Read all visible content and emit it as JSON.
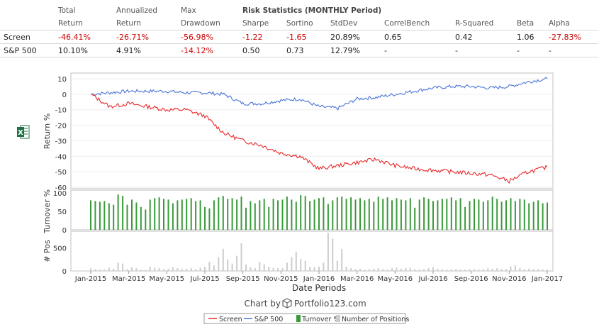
{
  "stats_table": {
    "group_header": "Risk Statistics (MONTHLY Period)",
    "headers_top": [
      "Total",
      "Annualized",
      "Max"
    ],
    "headers": [
      "Return",
      "Return",
      "Drawdown",
      "Sharpe",
      "Sortino",
      "StdDev",
      "CorrelBench",
      "R-Squared",
      "Beta",
      "Alpha"
    ],
    "rows": [
      {
        "name": "Screen",
        "values": [
          "-46.41%",
          "-26.71%",
          "-56.98%",
          "-1.22",
          "-1.65",
          "20.89%",
          "0.65",
          "0.42",
          "1.06",
          "-27.83%"
        ]
      },
      {
        "name": "S&P 500",
        "values": [
          "10.10%",
          "4.91%",
          "-14.12%",
          "0.50",
          "0.73",
          "12.79%",
          "-",
          "-",
          "-",
          "-"
        ]
      }
    ]
  },
  "chart_data": [
    {
      "type": "line",
      "ylabel": "Return %",
      "ylim": [
        -60,
        10
      ],
      "yticks": [
        "10",
        "0",
        "-10",
        "-20",
        "-30",
        "-40",
        "-50",
        "-60"
      ],
      "xlabel": "Date Periods",
      "xticks": [
        "Jan-2015",
        "Mar-2015",
        "May-2015",
        "Jul-2015",
        "Sep-2015",
        "Nov-2015",
        "Jan-2016",
        "Mar-2016",
        "May-2016",
        "Jul-2016",
        "Sep-2016",
        "Nov-2016",
        "Jan-2017"
      ],
      "x_months": [
        0,
        1,
        2,
        3,
        4,
        5,
        6,
        7,
        8,
        9,
        10,
        11,
        12,
        13,
        14,
        15,
        16,
        17,
        18,
        19,
        20,
        21,
        22,
        23,
        24
      ],
      "series": [
        {
          "name": "Screen",
          "color": "#e8292b",
          "values": [
            0,
            -8,
            -6,
            -8,
            -10,
            -10,
            -14,
            -25,
            -30,
            -33,
            -38,
            -40,
            -48,
            -46,
            -44,
            -42,
            -46,
            -48,
            -49,
            -50,
            -51,
            -52,
            -56,
            -50,
            -47
          ]
        },
        {
          "name": "S&P 500",
          "color": "#4a74d6",
          "values": [
            0,
            1,
            2,
            2,
            2,
            1,
            1,
            0,
            -6,
            -6,
            -4,
            -3,
            -8,
            -9,
            -3,
            -2,
            0,
            2,
            4,
            5,
            5,
            4,
            5,
            8,
            10
          ]
        }
      ]
    },
    {
      "type": "bar",
      "ylabel": "Turnover %",
      "ylim": [
        0,
        100
      ],
      "yticks": [
        "100",
        "50",
        "0"
      ],
      "color": "#3a9a3a",
      "values": [
        80,
        78,
        76,
        78,
        72,
        68,
        96,
        92,
        68,
        82,
        74,
        62,
        55,
        82,
        86,
        88,
        84,
        82,
        72,
        80,
        82,
        84,
        86,
        78,
        80,
        62,
        58,
        80,
        88,
        92,
        84,
        86,
        82,
        90,
        60,
        78,
        72,
        80,
        84,
        62,
        84,
        80,
        82,
        90,
        82,
        76,
        94,
        92,
        78,
        82,
        86,
        88,
        70,
        80,
        88,
        90,
        84,
        88,
        82,
        86,
        80,
        84,
        76,
        90,
        84,
        88,
        80,
        86,
        82,
        80,
        86,
        60,
        82,
        88,
        84,
        78,
        80,
        84,
        84,
        88,
        80,
        86,
        62,
        78,
        84,
        82,
        76,
        80,
        90,
        84,
        76,
        80,
        86,
        78,
        84,
        82,
        72,
        76,
        80,
        72,
        74
      ]
    },
    {
      "type": "bar",
      "ylabel": "# Pos",
      "ylim": [
        0,
        800
      ],
      "yticks": [
        "500",
        "0"
      ],
      "color": "#cccccc",
      "values": [
        60,
        40,
        30,
        35,
        70,
        50,
        180,
        160,
        40,
        80,
        60,
        30,
        20,
        90,
        70,
        60,
        40,
        50,
        80,
        60,
        40,
        50,
        60,
        40,
        70,
        90,
        200,
        120,
        300,
        480,
        250,
        160,
        330,
        600,
        140,
        80,
        60,
        200,
        150,
        90,
        70,
        60,
        60,
        180,
        300,
        420,
        260,
        220,
        90,
        80,
        90,
        180,
        830,
        700,
        220,
        480,
        90,
        60,
        40,
        50,
        30,
        40,
        50,
        60,
        40,
        30,
        60,
        70,
        50,
        60,
        70,
        40,
        30,
        40,
        60,
        80,
        50,
        40,
        30,
        40,
        40,
        30,
        30,
        40,
        40,
        30,
        40,
        60,
        50,
        60,
        40,
        40,
        100,
        120,
        60,
        40,
        50,
        40,
        40,
        30,
        30
      ]
    }
  ],
  "footer": {
    "chart_by": "Chart by",
    "brand": "Portfolio123.com"
  },
  "legend": [
    {
      "label": "Screen",
      "color": "#e8292b",
      "kind": "line"
    },
    {
      "label": "S&P 500",
      "color": "#4a74d6",
      "kind": "line"
    },
    {
      "label": "Turnover %",
      "color": "#3a9a3a",
      "kind": "bar"
    },
    {
      "label": "Number of Positions",
      "color": "#cccccc",
      "kind": "bar"
    }
  ],
  "excel_icon": "excel-export-icon"
}
